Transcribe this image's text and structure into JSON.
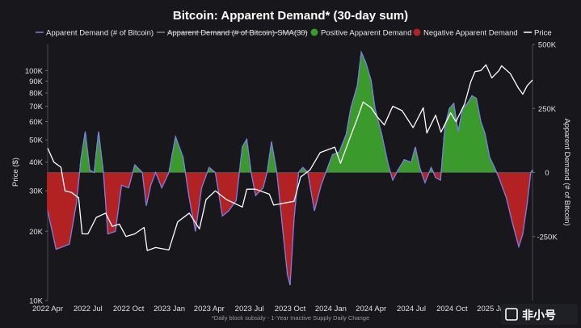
{
  "chart_data": {
    "type": "area",
    "title": "Bitcoin: Apparent Demand* (30-day sum)",
    "footnote": "*Daily block subsidy - 1-Year Inactive Supply Daily Change",
    "ylabel_left": "Price ($)",
    "ylabel_right": "Apparent Demand (# of Bitcoin)",
    "left_axis": {
      "scale": "log",
      "ylim": [
        10000,
        130000
      ],
      "ticks": [
        {
          "value": 10000,
          "label": "10K"
        },
        {
          "value": 20000,
          "label": "20K"
        },
        {
          "value": 30000,
          "label": "30K"
        },
        {
          "value": 40000,
          "label": "40K"
        },
        {
          "value": 50000,
          "label": "50K"
        },
        {
          "value": 60000,
          "label": "60K"
        },
        {
          "value": 70000,
          "label": "70K"
        },
        {
          "value": 80000,
          "label": "80K"
        },
        {
          "value": 90000,
          "label": "90K"
        },
        {
          "value": 100000,
          "label": "100K"
        }
      ]
    },
    "right_axis": {
      "scale": "linear",
      "ylim": [
        -500000,
        500000
      ],
      "ticks": [
        {
          "value": 500000,
          "label": "500K"
        },
        {
          "value": 250000,
          "label": "250K"
        },
        {
          "value": 0,
          "label": "0"
        },
        {
          "value": -250000,
          "label": "-250K"
        }
      ]
    },
    "x_axis": {
      "range": [
        "2022-04-01",
        "2025-04-01"
      ],
      "ticks": [
        {
          "date": "2022-04-01",
          "label": "2022 Apr"
        },
        {
          "date": "2022-07-01",
          "label": "2022 Jul"
        },
        {
          "date": "2022-10-01",
          "label": "2022 Oct"
        },
        {
          "date": "2023-01-01",
          "label": "2023 Jan"
        },
        {
          "date": "2023-04-01",
          "label": "2023 Apr"
        },
        {
          "date": "2023-07-01",
          "label": "2023 Jul"
        },
        {
          "date": "2023-10-01",
          "label": "2023 Oct"
        },
        {
          "date": "2024-01-01",
          "label": "2024 Jan"
        },
        {
          "date": "2024-04-01",
          "label": "2024 Apr"
        },
        {
          "date": "2024-07-01",
          "label": "2024 Jul"
        },
        {
          "date": "2024-10-01",
          "label": "2024 Oct"
        },
        {
          "date": "2025-01-01",
          "label": "2025 Jan"
        }
      ]
    },
    "grid": false,
    "legend_position": "top",
    "legend": [
      {
        "name": "Apparent Demand (# of Bitcoin)",
        "kind": "line",
        "color": "#7d7de6"
      },
      {
        "name": "Apparent Demand (# of Bitcoin)-SMA(30)",
        "kind": "line",
        "color": "#9a9a9a",
        "hidden": true
      },
      {
        "name": "Positive Apparent Demand",
        "kind": "dot",
        "color": "#3a9a2c"
      },
      {
        "name": "Negative Apparent Demand",
        "kind": "dot",
        "color": "#b22222"
      },
      {
        "name": "Price",
        "kind": "line",
        "color": "#ffffff"
      }
    ],
    "colors": {
      "positive": "#3a9a2c",
      "negative": "#b22222",
      "demand_line": "#7d7de6",
      "price": "#ffffff",
      "background": "#17171c"
    },
    "series": [
      {
        "name": "Apparent Demand (# of Bitcoin)",
        "axis": "right",
        "points": [
          [
            "2022-04-01",
            -150000
          ],
          [
            "2022-04-20",
            -300000
          ],
          [
            "2022-05-05",
            -290000
          ],
          [
            "2022-05-20",
            -280000
          ],
          [
            "2022-06-05",
            -120000
          ],
          [
            "2022-06-15",
            50000
          ],
          [
            "2022-06-25",
            160000
          ],
          [
            "2022-07-05",
            10000
          ],
          [
            "2022-07-15",
            0
          ],
          [
            "2022-07-25",
            160000
          ],
          [
            "2022-08-05",
            0
          ],
          [
            "2022-08-15",
            -240000
          ],
          [
            "2022-09-01",
            -230000
          ],
          [
            "2022-09-15",
            -50000
          ],
          [
            "2022-10-01",
            -60000
          ],
          [
            "2022-10-15",
            30000
          ],
          [
            "2022-11-01",
            0
          ],
          [
            "2022-11-10",
            -130000
          ],
          [
            "2022-11-20",
            -50000
          ],
          [
            "2022-12-01",
            0
          ],
          [
            "2022-12-15",
            -60000
          ],
          [
            "2022-12-31",
            0
          ],
          [
            "2023-01-15",
            140000
          ],
          [
            "2023-02-01",
            60000
          ],
          [
            "2023-02-15",
            -100000
          ],
          [
            "2023-03-01",
            -230000
          ],
          [
            "2023-03-15",
            -60000
          ],
          [
            "2023-04-01",
            20000
          ],
          [
            "2023-04-15",
            0
          ],
          [
            "2023-05-01",
            -170000
          ],
          [
            "2023-05-15",
            -150000
          ],
          [
            "2023-06-01",
            -110000
          ],
          [
            "2023-06-15",
            100000
          ],
          [
            "2023-06-25",
            130000
          ],
          [
            "2023-07-05",
            0
          ],
          [
            "2023-07-15",
            -90000
          ],
          [
            "2023-08-01",
            -60000
          ],
          [
            "2023-08-10",
            0
          ],
          [
            "2023-08-20",
            120000
          ],
          [
            "2023-09-01",
            0
          ],
          [
            "2023-09-10",
            -150000
          ],
          [
            "2023-09-25",
            -400000
          ],
          [
            "2023-10-01",
            -440000
          ],
          [
            "2023-10-10",
            -180000
          ],
          [
            "2023-10-20",
            0
          ],
          [
            "2023-10-30",
            20000
          ],
          [
            "2023-11-10",
            0
          ],
          [
            "2023-11-25",
            -150000
          ],
          [
            "2023-12-10",
            -50000
          ],
          [
            "2023-12-25",
            20000
          ],
          [
            "2024-01-05",
            70000
          ],
          [
            "2024-01-20",
            80000
          ],
          [
            "2024-02-05",
            150000
          ],
          [
            "2024-02-15",
            250000
          ],
          [
            "2024-03-01",
            340000
          ],
          [
            "2024-03-10",
            470000
          ],
          [
            "2024-03-20",
            430000
          ],
          [
            "2024-04-01",
            360000
          ],
          [
            "2024-04-10",
            250000
          ],
          [
            "2024-04-25",
            150000
          ],
          [
            "2024-05-10",
            30000
          ],
          [
            "2024-05-20",
            -30000
          ],
          [
            "2024-06-01",
            10000
          ],
          [
            "2024-06-15",
            50000
          ],
          [
            "2024-07-01",
            40000
          ],
          [
            "2024-07-10",
            100000
          ],
          [
            "2024-07-20",
            20000
          ],
          [
            "2024-08-01",
            -40000
          ],
          [
            "2024-08-15",
            20000
          ],
          [
            "2024-08-25",
            -20000
          ],
          [
            "2024-09-05",
            -30000
          ],
          [
            "2024-09-15",
            180000
          ],
          [
            "2024-09-25",
            250000
          ],
          [
            "2024-10-05",
            270000
          ],
          [
            "2024-10-15",
            160000
          ],
          [
            "2024-10-25",
            250000
          ],
          [
            "2024-11-05",
            270000
          ],
          [
            "2024-11-15",
            300000
          ],
          [
            "2024-11-25",
            290000
          ],
          [
            "2024-12-05",
            200000
          ],
          [
            "2024-12-15",
            150000
          ],
          [
            "2024-12-25",
            60000
          ],
          [
            "2025-01-05",
            20000
          ],
          [
            "2025-01-15",
            -20000
          ],
          [
            "2025-02-01",
            -100000
          ],
          [
            "2025-02-15",
            -200000
          ],
          [
            "2025-03-01",
            -290000
          ],
          [
            "2025-03-10",
            -240000
          ],
          [
            "2025-03-20",
            -120000
          ],
          [
            "2025-03-28",
            0
          ],
          [
            "2025-04-01",
            10000
          ]
        ]
      },
      {
        "name": "Price",
        "axis": "left",
        "points": [
          [
            "2022-04-01",
            46000
          ],
          [
            "2022-04-15",
            40000
          ],
          [
            "2022-05-01",
            38000
          ],
          [
            "2022-05-10",
            30000
          ],
          [
            "2022-05-25",
            29500
          ],
          [
            "2022-06-10",
            28000
          ],
          [
            "2022-06-18",
            19500
          ],
          [
            "2022-07-01",
            19500
          ],
          [
            "2022-07-20",
            23000
          ],
          [
            "2022-08-10",
            24000
          ],
          [
            "2022-08-25",
            21000
          ],
          [
            "2022-09-10",
            21500
          ],
          [
            "2022-09-25",
            19000
          ],
          [
            "2022-10-15",
            19500
          ],
          [
            "2022-11-05",
            20800
          ],
          [
            "2022-11-12",
            16500
          ],
          [
            "2022-12-01",
            17000
          ],
          [
            "2022-12-31",
            16600
          ],
          [
            "2023-01-20",
            22000
          ],
          [
            "2023-02-15",
            24000
          ],
          [
            "2023-03-10",
            20500
          ],
          [
            "2023-03-25",
            27500
          ],
          [
            "2023-04-15",
            30000
          ],
          [
            "2023-05-10",
            27500
          ],
          [
            "2023-06-15",
            25500
          ],
          [
            "2023-06-25",
            30500
          ],
          [
            "2023-07-15",
            30500
          ],
          [
            "2023-08-15",
            29000
          ],
          [
            "2023-08-25",
            26000
          ],
          [
            "2023-09-15",
            26500
          ],
          [
            "2023-10-10",
            27000
          ],
          [
            "2023-10-25",
            34500
          ],
          [
            "2023-11-15",
            37000
          ],
          [
            "2023-12-08",
            44000
          ],
          [
            "2024-01-10",
            46500
          ],
          [
            "2024-01-23",
            39500
          ],
          [
            "2024-02-15",
            52000
          ],
          [
            "2024-03-01",
            62000
          ],
          [
            "2024-03-14",
            73000
          ],
          [
            "2024-04-01",
            69000
          ],
          [
            "2024-04-15",
            63000
          ],
          [
            "2024-05-01",
            58000
          ],
          [
            "2024-05-20",
            70000
          ],
          [
            "2024-06-10",
            67000
          ],
          [
            "2024-07-05",
            56500
          ],
          [
            "2024-07-28",
            69000
          ],
          [
            "2024-08-05",
            53500
          ],
          [
            "2024-08-25",
            64000
          ],
          [
            "2024-09-06",
            54000
          ],
          [
            "2024-09-28",
            65500
          ],
          [
            "2024-10-10",
            60000
          ],
          [
            "2024-10-30",
            72000
          ],
          [
            "2024-11-12",
            89000
          ],
          [
            "2024-11-22",
            99000
          ],
          [
            "2024-12-05",
            100000
          ],
          [
            "2024-12-17",
            106000
          ],
          [
            "2024-12-30",
            93000
          ],
          [
            "2025-01-15",
            100000
          ],
          [
            "2025-01-21",
            105000
          ],
          [
            "2025-02-10",
            97000
          ],
          [
            "2025-02-28",
            84000
          ],
          [
            "2025-03-10",
            79000
          ],
          [
            "2025-03-20",
            86000
          ],
          [
            "2025-04-01",
            91000
          ]
        ]
      }
    ]
  },
  "watermark": {
    "brand_text": "非小号"
  }
}
